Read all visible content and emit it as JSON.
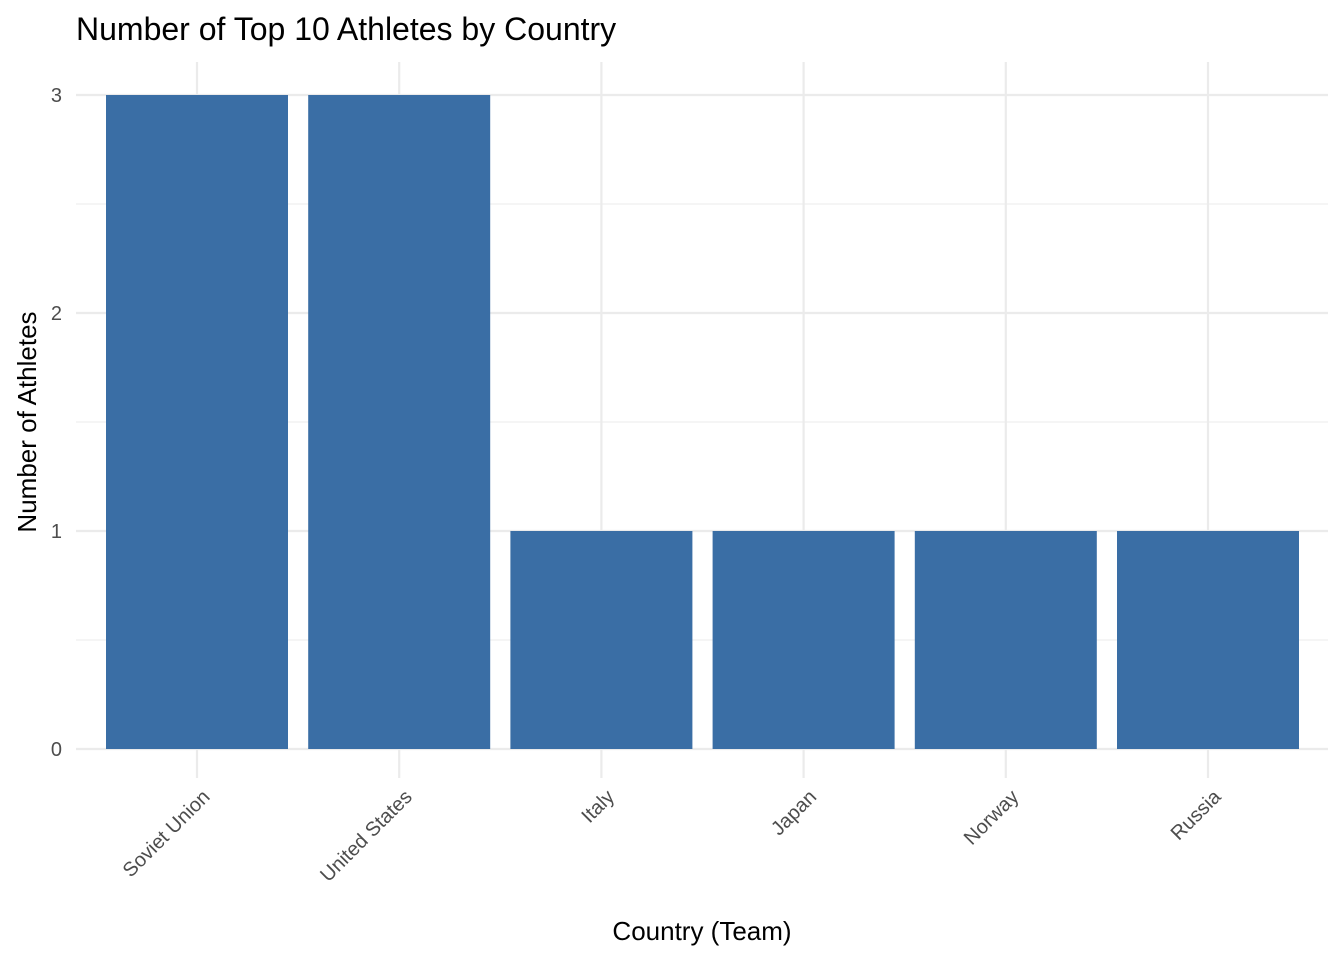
{
  "chart_data": {
    "type": "bar",
    "title": "Number of Top 10 Athletes by Country",
    "xlabel": "Country (Team)",
    "ylabel": "Number of Athletes",
    "categories": [
      "Soviet Union",
      "United States",
      "Italy",
      "Japan",
      "Norway",
      "Russia"
    ],
    "values": [
      3,
      3,
      1,
      1,
      1,
      1
    ],
    "ylim": [
      0,
      3
    ],
    "yticks": [
      0,
      1,
      2,
      3
    ],
    "grid": true,
    "legend": "none",
    "bar_color": "#3A6EA5",
    "grid_color": "#EBEBEB"
  }
}
